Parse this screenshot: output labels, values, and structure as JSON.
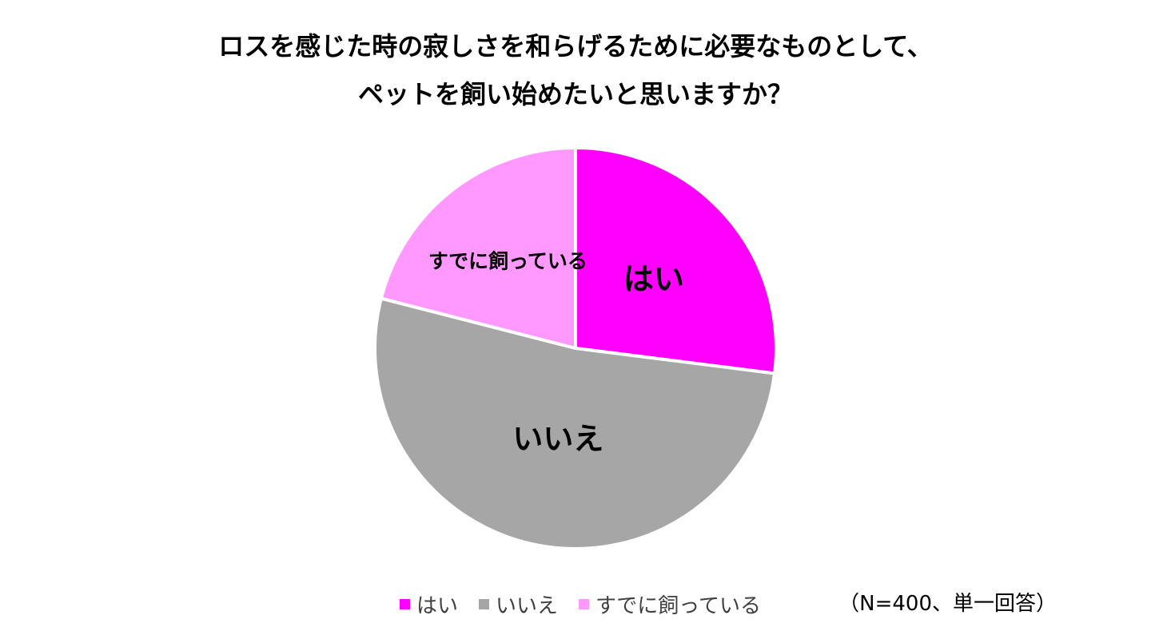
{
  "chart_data": {
    "type": "pie",
    "title_lines": [
      "ロスを感じた時の寂しさを和らげるために必要なものとして、",
      "ペットを飼い始めたいと思いますか？"
    ],
    "slices": [
      {
        "label": "はい",
        "value": 27,
        "color": "#FF00FF",
        "label_size": "large"
      },
      {
        "label": "いいえ",
        "value": 52,
        "color": "#A6A6A6",
        "label_size": "large"
      },
      {
        "label": "すでに飼っている",
        "value": 21,
        "color": "#FF99FF",
        "label_size": "small"
      }
    ],
    "start_angle": "12 o'clock",
    "direction": "clockwise",
    "legend": {
      "position": "bottom"
    },
    "note": "（N=400、単一回答）"
  }
}
